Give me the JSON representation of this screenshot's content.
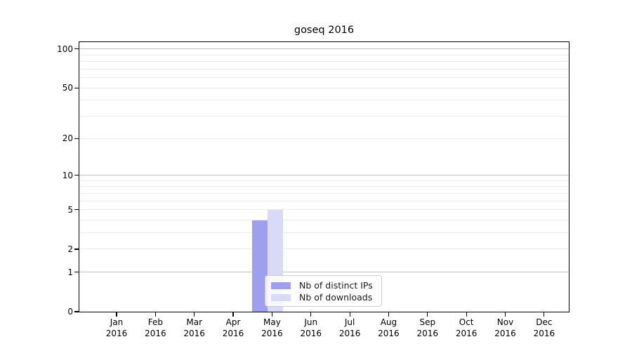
{
  "chart_data": {
    "type": "bar",
    "title": "goseq 2016",
    "year_label": "2016",
    "categories": [
      "Jan",
      "Feb",
      "Mar",
      "Apr",
      "May",
      "Jun",
      "Jul",
      "Aug",
      "Sep",
      "Oct",
      "Nov",
      "Dec"
    ],
    "series": [
      {
        "name": "Nb of distinct IPs",
        "color": "#9f9fef",
        "values": [
          0,
          0,
          0,
          0,
          4,
          0,
          0,
          0,
          0,
          0,
          0,
          0
        ]
      },
      {
        "name": "Nb of downloads",
        "color": "#d9d9f8",
        "values": [
          0,
          0,
          0,
          0,
          5,
          0,
          0,
          0,
          0,
          0,
          0,
          0
        ]
      }
    ],
    "yscale": "log1p",
    "ylim": [
      0,
      113
    ],
    "yticks": [
      0,
      1,
      2,
      5,
      10,
      20,
      50,
      100
    ],
    "grid": "horizontal",
    "grid_major_values": [
      1,
      10,
      100
    ],
    "grid_minor_values": [
      2,
      3,
      4,
      5,
      6,
      7,
      8,
      9,
      20,
      30,
      40,
      50,
      60,
      70,
      80,
      90
    ],
    "legend_position": "lower-center",
    "colors": {
      "grid_major": "#c2c2c2",
      "grid_minor": "#ebebeb",
      "axis": "#000000",
      "text": "#000000"
    }
  }
}
